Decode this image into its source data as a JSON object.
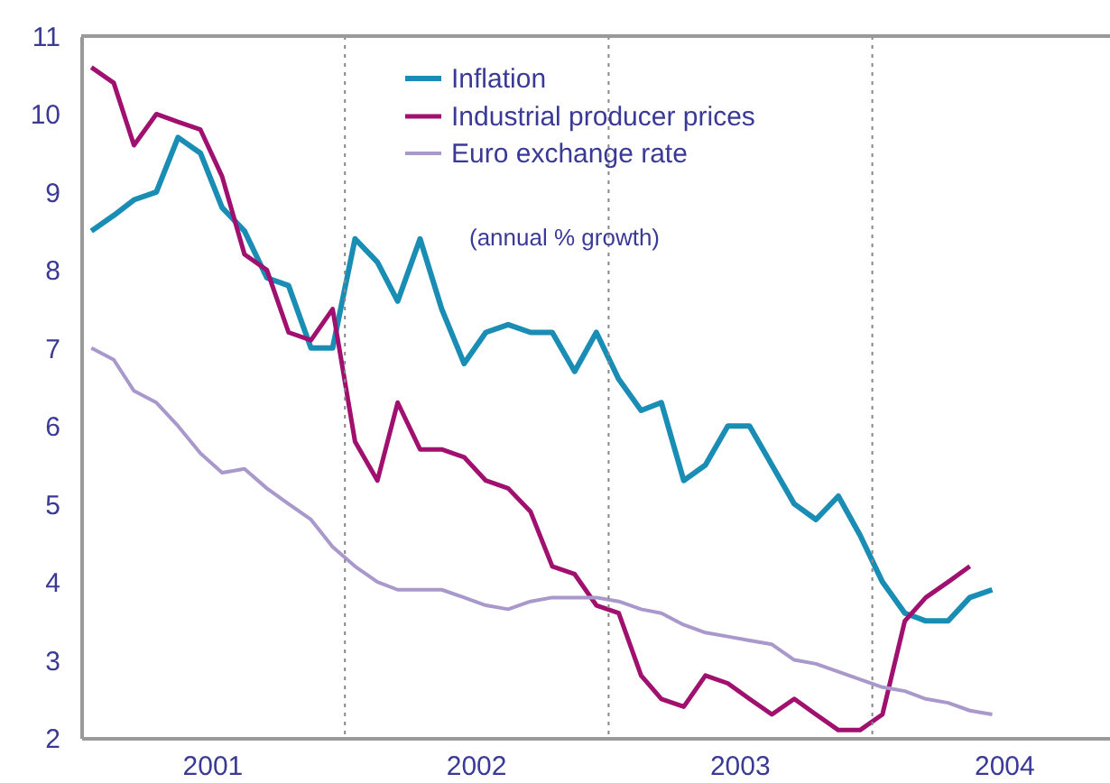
{
  "chart_data": {
    "type": "line",
    "x": [
      "2001-01-15",
      "2001-02-15",
      "2001-03-15",
      "2001-04-15",
      "2001-05-15",
      "2001-06-15",
      "2001-07-15",
      "2001-08-15",
      "2001-09-15",
      "2001-10-15",
      "2001-11-15",
      "2001-12-15",
      "2002-01-15",
      "2002-02-15",
      "2002-03-15",
      "2002-04-15",
      "2002-05-15",
      "2002-06-15",
      "2002-07-15",
      "2002-08-15",
      "2002-09-15",
      "2002-10-15",
      "2002-11-15",
      "2002-12-15",
      "2003-01-15",
      "2003-02-15",
      "2003-03-15",
      "2003-04-15",
      "2003-05-15",
      "2003-06-15",
      "2003-07-15",
      "2003-08-15",
      "2003-09-15",
      "2003-10-15",
      "2003-11-15",
      "2003-12-15",
      "2004-01-15",
      "2004-02-15",
      "2004-03-15",
      "2004-04-15",
      "2004-05-15",
      "2004-06-15"
    ],
    "series": [
      {
        "name": "Inflation",
        "color": "#1a8db5",
        "values": [
          8.5,
          8.7,
          8.9,
          9.0,
          9.7,
          9.5,
          8.8,
          8.5,
          7.9,
          7.8,
          7.0,
          7.0,
          8.4,
          8.1,
          7.6,
          8.4,
          7.5,
          6.8,
          7.2,
          7.3,
          7.2,
          7.2,
          6.7,
          7.2,
          6.6,
          6.2,
          6.3,
          5.3,
          5.5,
          6.0,
          6.0,
          5.5,
          5.0,
          4.8,
          5.1,
          4.6,
          4.0,
          3.6,
          3.5,
          3.5,
          3.8,
          3.9
        ]
      },
      {
        "name": "Industrial producer prices",
        "color": "#a0106e",
        "values": [
          10.6,
          10.4,
          9.6,
          10.0,
          9.9,
          9.8,
          9.2,
          8.2,
          8.0,
          7.2,
          7.1,
          7.5,
          5.8,
          5.3,
          6.3,
          5.7,
          5.7,
          5.6,
          5.3,
          5.2,
          4.9,
          4.2,
          4.1,
          3.7,
          3.6,
          2.8,
          2.5,
          2.4,
          2.8,
          2.7,
          2.5,
          2.3,
          2.5,
          2.3,
          2.1,
          2.1,
          2.3,
          3.5,
          3.8,
          4.0,
          4.2,
          null
        ]
      },
      {
        "name": "Euro exchange rate",
        "color": "#a898cc",
        "values": [
          7.0,
          6.85,
          6.45,
          6.3,
          6.0,
          5.65,
          5.4,
          5.45,
          5.2,
          5.0,
          4.8,
          4.45,
          4.2,
          4.0,
          3.9,
          3.9,
          3.9,
          3.8,
          3.7,
          3.65,
          3.75,
          3.8,
          3.8,
          3.8,
          3.75,
          3.65,
          3.6,
          3.45,
          3.35,
          3.3,
          3.25,
          3.2,
          3.0,
          2.95,
          2.85,
          2.75,
          2.65,
          2.6,
          2.5,
          2.45,
          2.35,
          2.3
        ]
      }
    ],
    "xlim": [
      "2001-01-01",
      "2004-11-25"
    ],
    "xticks": [
      {
        "value": "2001-07-01",
        "label": "2001"
      },
      {
        "value": "2002-07-01",
        "label": "2002"
      },
      {
        "value": "2003-07-01",
        "label": "2003"
      },
      {
        "value": "2004-07-01",
        "label": "2004"
      }
    ],
    "ylim": [
      2,
      11
    ],
    "yticks": [
      2,
      3,
      4,
      5,
      6,
      7,
      8,
      9,
      10,
      11
    ],
    "ref_lines": [
      {
        "axis": "x",
        "value": "2002-01-01",
        "line_style": "dotted",
        "color": "#888888"
      },
      {
        "axis": "x",
        "value": "2003-01-01",
        "line_style": "dotted",
        "color": "#888888"
      },
      {
        "axis": "x",
        "value": "2004-01-01",
        "line_style": "dotted",
        "color": "#888888"
      }
    ],
    "annotations": [
      "(annual % growth)"
    ],
    "legend": "top",
    "grid": false,
    "line_style": "solid",
    "marker": "none"
  }
}
